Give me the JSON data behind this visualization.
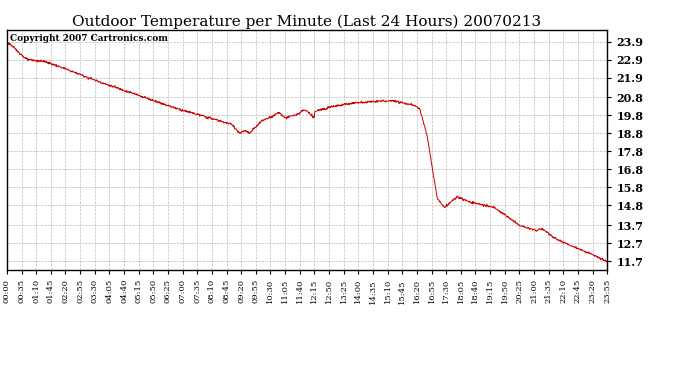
{
  "title": "Outdoor Temperature per Minute (Last 24 Hours) 20070213",
  "copyright_text": "Copyright 2007 Cartronics.com",
  "line_color": "#cc0000",
  "bg_color": "#ffffff",
  "plot_bg_color": "#ffffff",
  "grid_color": "#bbbbbb",
  "title_fontsize": 11,
  "ylim": [
    11.2,
    24.55
  ],
  "yticks": [
    11.7,
    12.7,
    13.7,
    14.8,
    15.8,
    16.8,
    17.8,
    18.8,
    19.8,
    20.8,
    21.9,
    22.9,
    23.9
  ],
  "xtick_labels": [
    "00:00",
    "00:35",
    "01:10",
    "01:45",
    "02:20",
    "02:55",
    "03:30",
    "04:05",
    "04:40",
    "05:15",
    "05:50",
    "06:25",
    "07:00",
    "07:35",
    "08:10",
    "08:45",
    "09:20",
    "09:55",
    "10:30",
    "11:05",
    "11:40",
    "12:15",
    "12:50",
    "13:25",
    "14:00",
    "14:35",
    "15:10",
    "15:45",
    "16:20",
    "16:55",
    "17:30",
    "18:05",
    "18:40",
    "19:15",
    "19:50",
    "20:25",
    "21:00",
    "21:35",
    "22:10",
    "22:45",
    "23:20",
    "23:55"
  ],
  "num_points": 1440,
  "figsize": [
    6.9,
    3.75
  ],
  "dpi": 100
}
